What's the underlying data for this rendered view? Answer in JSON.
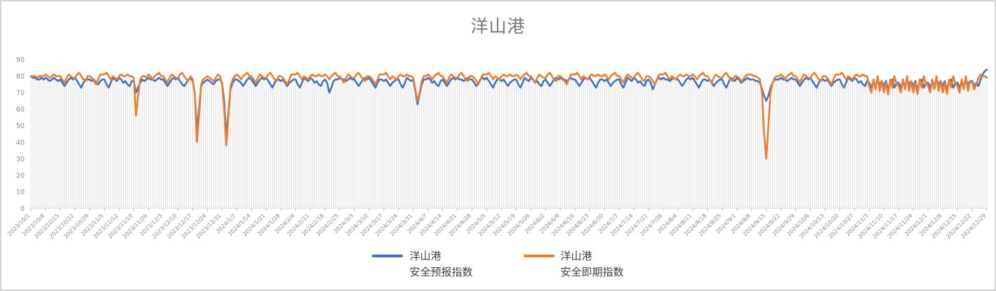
{
  "chart_data": {
    "type": "line",
    "title": "洋山港",
    "legend_position": "bottom",
    "grid": "vertical-droplines-only",
    "ylim": [
      0,
      90
    ],
    "y_ticks": [
      0,
      10,
      20,
      30,
      40,
      50,
      60,
      70,
      80,
      90
    ],
    "x_tick_interval_days": 7,
    "x_tick_labels": [
      "2023/10/1",
      "2023/10/8",
      "2023/10/15",
      "2023/10/22",
      "2023/10/29",
      "2023/11/5",
      "2023/11/12",
      "2023/11/19",
      "2023/11/26",
      "2023/12/3",
      "2023/12/10",
      "2023/12/17",
      "2023/12/24",
      "2023/12/31",
      "2024/1/7",
      "2024/1/14",
      "2024/1/21",
      "2024/1/28",
      "2024/2/4",
      "2024/2/11",
      "2024/2/18",
      "2024/2/25",
      "2024/3/3",
      "2024/3/10",
      "2024/3/17",
      "2024/3/24",
      "2024/3/31",
      "2024/4/7",
      "2024/4/14",
      "2024/4/21",
      "2024/4/28",
      "2024/5/5",
      "2024/5/12",
      "2024/5/19",
      "2024/5/26",
      "2024/6/2",
      "2024/6/9",
      "2024/6/16",
      "2024/6/23",
      "2024/6/30",
      "2024/7/7",
      "2024/7/14",
      "2024/7/21",
      "2024/7/28",
      "2024/8/4",
      "2024/8/11",
      "2024/8/18",
      "2024/8/25",
      "2024/9/1",
      "2024/9/8",
      "2024/9/15",
      "2024/9/22",
      "2024/9/29",
      "2024/10/6",
      "2024/10/13",
      "2024/10/20",
      "2024/10/27",
      "2024/11/3",
      "2024/11/10",
      "2024/11/17",
      "2024/11/24",
      "2024/12/1",
      "2024/12/8",
      "2024/12/15",
      "2024/12/22",
      "2024/12/29"
    ],
    "colors": {
      "dropline": "#dcdcdc",
      "axis": "#d9d9d9",
      "tick": "#bfbfbf",
      "label": "#8a8a8a",
      "title": "#767676"
    },
    "series": [
      {
        "name": "洋山港\n安全预报指数",
        "color": "#4472C4",
        "values": [
          80,
          79,
          79,
          78,
          78,
          79,
          78,
          79,
          78,
          77,
          78,
          79,
          78,
          77,
          78,
          76,
          74,
          76,
          78,
          79,
          78,
          79,
          77,
          75,
          73,
          76,
          78,
          78,
          78,
          77,
          78,
          76,
          75,
          77,
          78,
          78,
          75,
          73,
          76,
          79,
          78,
          77,
          79,
          78,
          76,
          77,
          75,
          74,
          77,
          77,
          70,
          73,
          76,
          78,
          77,
          78,
          79,
          78,
          78,
          77,
          78,
          79,
          78,
          78,
          76,
          74,
          76,
          78,
          79,
          78,
          79,
          77,
          75,
          74,
          76,
          78,
          79,
          77,
          70,
          47,
          60,
          74,
          76,
          77,
          78,
          77,
          76,
          75,
          77,
          78,
          78,
          76,
          65,
          43,
          58,
          72,
          76,
          78,
          78,
          77,
          76,
          74,
          76,
          78,
          79,
          78,
          76,
          74,
          76,
          78,
          79,
          78,
          79,
          77,
          75,
          73,
          76,
          78,
          78,
          77,
          78,
          76,
          74,
          76,
          77,
          78,
          78,
          75,
          73,
          76,
          79,
          78,
          77,
          79,
          78,
          76,
          77,
          75,
          74,
          77,
          78,
          76,
          70,
          73,
          77,
          78,
          78,
          79,
          78,
          78,
          77,
          78,
          79,
          78,
          78,
          76,
          74,
          76,
          78,
          79,
          78,
          79,
          77,
          75,
          73,
          76,
          78,
          78,
          77,
          78,
          76,
          74,
          76,
          77,
          78,
          78,
          75,
          73,
          76,
          79,
          78,
          77,
          78,
          71,
          63,
          69,
          75,
          78,
          78,
          79,
          78,
          76,
          77,
          75,
          74,
          77,
          78,
          76,
          74,
          76,
          78,
          79,
          78,
          79,
          78,
          78,
          77,
          78,
          79,
          78,
          78,
          76,
          74,
          76,
          78,
          79,
          78,
          79,
          77,
          75,
          73,
          76,
          78,
          78,
          77,
          78,
          76,
          74,
          76,
          77,
          78,
          78,
          75,
          73,
          76,
          79,
          78,
          77,
          79,
          78,
          76,
          77,
          75,
          74,
          77,
          78,
          76,
          74,
          76,
          78,
          79,
          78,
          79,
          78,
          78,
          77,
          78,
          79,
          78,
          78,
          76,
          74,
          76,
          78,
          79,
          78,
          79,
          77,
          75,
          73,
          76,
          78,
          78,
          77,
          78,
          76,
          74,
          76,
          77,
          78,
          78,
          75,
          73,
          76,
          79,
          78,
          77,
          79,
          78,
          76,
          77,
          75,
          74,
          77,
          78,
          76,
          72,
          75,
          78,
          79,
          78,
          79,
          78,
          78,
          77,
          78,
          79,
          78,
          78,
          76,
          74,
          76,
          78,
          79,
          78,
          79,
          77,
          75,
          73,
          76,
          78,
          78,
          77,
          78,
          76,
          74,
          76,
          77,
          78,
          78,
          75,
          73,
          76,
          79,
          78,
          77,
          79,
          78,
          76,
          77,
          78,
          79,
          78,
          78,
          78,
          77,
          77,
          76,
          72,
          68,
          65,
          68,
          73,
          76,
          78,
          78,
          78,
          79,
          78,
          78,
          77,
          78,
          79,
          78,
          78,
          76,
          74,
          76,
          78,
          79,
          78,
          79,
          77,
          75,
          73,
          76,
          78,
          78,
          77,
          78,
          76,
          74,
          76,
          77,
          78,
          78,
          75,
          73,
          76,
          79,
          78,
          77,
          79,
          78,
          76,
          77,
          75,
          74,
          77,
          76,
          73,
          77,
          74,
          78,
          75,
          77,
          74,
          77,
          72,
          76,
          78,
          73,
          76,
          76,
          73,
          77,
          74,
          78,
          75,
          77,
          74,
          77,
          72,
          76,
          78,
          73,
          76,
          76,
          73,
          77,
          74,
          78,
          75,
          77,
          74,
          77,
          72,
          76,
          78,
          73,
          76,
          76,
          73,
          77,
          74,
          78,
          75,
          77,
          77,
          74,
          76,
          74,
          78,
          81,
          83,
          84
        ]
      },
      {
        "name": "洋山港\n安全即期指数",
        "color": "#ED7D31",
        "values": [
          80,
          80,
          80,
          79,
          80,
          80,
          80,
          81,
          80,
          79,
          80,
          81,
          80,
          80,
          80,
          78,
          76,
          79,
          81,
          80,
          79,
          79,
          81,
          82,
          80,
          78,
          77,
          80,
          80,
          79,
          77,
          75,
          78,
          81,
          81,
          81,
          82,
          80,
          78,
          80,
          79,
          78,
          80,
          81,
          80,
          80,
          81,
          80,
          80,
          79,
          56,
          68,
          78,
          80,
          80,
          79,
          81,
          80,
          78,
          80,
          81,
          82,
          80,
          80,
          78,
          76,
          79,
          81,
          80,
          79,
          79,
          81,
          82,
          80,
          78,
          77,
          80,
          78,
          70,
          40,
          55,
          75,
          78,
          79,
          80,
          79,
          78,
          77,
          79,
          81,
          80,
          75,
          60,
          38,
          55,
          74,
          78,
          80,
          81,
          80,
          78,
          80,
          81,
          82,
          80,
          80,
          78,
          76,
          79,
          81,
          80,
          79,
          79,
          81,
          82,
          80,
          78,
          77,
          80,
          80,
          79,
          77,
          75,
          78,
          81,
          81,
          81,
          82,
          80,
          78,
          80,
          79,
          78,
          80,
          81,
          80,
          80,
          81,
          80,
          80,
          81,
          80,
          78,
          80,
          81,
          82,
          80,
          80,
          78,
          76,
          79,
          81,
          80,
          79,
          79,
          81,
          82,
          80,
          78,
          77,
          80,
          80,
          79,
          77,
          75,
          78,
          81,
          81,
          81,
          82,
          80,
          78,
          80,
          79,
          78,
          80,
          81,
          80,
          80,
          81,
          80,
          80,
          79,
          72,
          65,
          70,
          77,
          80,
          80,
          81,
          80,
          78,
          80,
          81,
          82,
          80,
          80,
          78,
          76,
          79,
          81,
          80,
          79,
          79,
          81,
          82,
          80,
          78,
          77,
          80,
          80,
          79,
          77,
          75,
          78,
          81,
          81,
          81,
          82,
          80,
          78,
          80,
          79,
          78,
          80,
          81,
          80,
          80,
          81,
          80,
          80,
          81,
          80,
          78,
          80,
          81,
          82,
          80,
          80,
          78,
          76,
          79,
          81,
          80,
          79,
          79,
          81,
          82,
          80,
          78,
          77,
          80,
          80,
          79,
          77,
          75,
          78,
          81,
          81,
          81,
          82,
          80,
          78,
          80,
          79,
          78,
          80,
          81,
          80,
          80,
          81,
          80,
          80,
          81,
          80,
          78,
          80,
          81,
          82,
          80,
          80,
          78,
          76,
          79,
          81,
          80,
          79,
          79,
          81,
          82,
          80,
          78,
          77,
          80,
          80,
          79,
          77,
          75,
          78,
          81,
          81,
          81,
          82,
          80,
          78,
          80,
          79,
          78,
          80,
          81,
          80,
          80,
          81,
          80,
          80,
          81,
          80,
          78,
          80,
          81,
          82,
          80,
          80,
          78,
          76,
          79,
          81,
          80,
          79,
          79,
          81,
          82,
          80,
          78,
          77,
          80,
          80,
          79,
          77,
          78,
          80,
          81,
          81,
          81,
          80,
          80,
          79,
          78,
          70,
          45,
          30,
          50,
          70,
          76,
          79,
          80,
          80,
          81,
          80,
          78,
          80,
          81,
          82,
          80,
          80,
          78,
          76,
          79,
          81,
          80,
          79,
          79,
          81,
          82,
          80,
          78,
          77,
          80,
          80,
          79,
          77,
          75,
          78,
          81,
          81,
          81,
          82,
          80,
          78,
          80,
          79,
          78,
          80,
          81,
          80,
          80,
          81,
          80,
          80,
          74,
          70,
          78,
          72,
          80,
          71,
          77,
          70,
          76,
          69,
          78,
          73,
          80,
          75,
          74,
          70,
          78,
          72,
          80,
          71,
          77,
          70,
          76,
          69,
          78,
          73,
          80,
          75,
          74,
          70,
          78,
          72,
          80,
          71,
          77,
          70,
          76,
          69,
          78,
          73,
          80,
          75,
          74,
          70,
          78,
          72,
          80,
          71,
          77,
          76,
          72,
          75,
          79,
          81,
          80,
          80,
          79
        ]
      }
    ]
  }
}
